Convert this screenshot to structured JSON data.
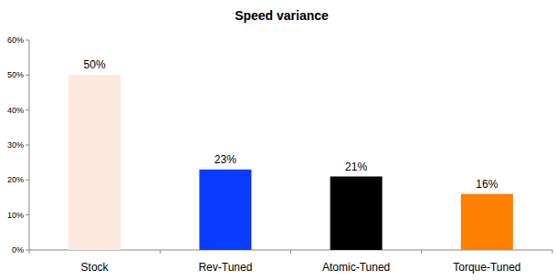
{
  "chart_data": {
    "type": "bar",
    "title": "Speed variance",
    "categories": [
      "Stock",
      "Rev-Tuned",
      "Atomic-Tuned",
      "Torque-Tuned"
    ],
    "values": [
      50,
      23,
      21,
      16
    ],
    "value_labels": [
      "50%",
      "23%",
      "21%",
      "16%"
    ],
    "colors": [
      "#fce8dc",
      "#0a3cff",
      "#000000",
      "#ff7f00"
    ],
    "ylim": [
      0,
      60
    ],
    "yticks": [
      {
        "value": 0,
        "label": "0%"
      },
      {
        "value": 10,
        "label": "10%"
      },
      {
        "value": 20,
        "label": "20%"
      },
      {
        "value": 30,
        "label": "30%"
      },
      {
        "value": 40,
        "label": "40%"
      },
      {
        "value": 50,
        "label": "50%"
      },
      {
        "value": 60,
        "label": "60%"
      }
    ],
    "grid": false,
    "data_labels": true
  }
}
